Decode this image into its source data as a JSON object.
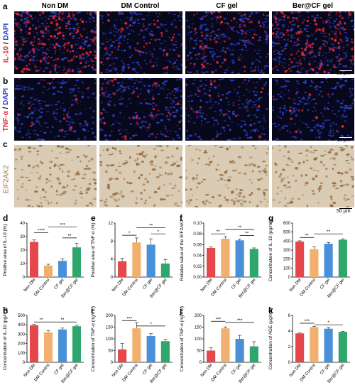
{
  "panel_labels": [
    "a",
    "b",
    "c",
    "d",
    "e",
    "f",
    "g",
    "h",
    "i",
    "j",
    "k"
  ],
  "groups": [
    "Non DM",
    "DM Control",
    "CF gel",
    "Ber@CF gel"
  ],
  "rows": {
    "a": {
      "label_red": "IL-10",
      "label_sep": " / ",
      "label_blue": "DAPI"
    },
    "b": {
      "label_red": "TNF-α",
      "label_sep": " / ",
      "label_blue": "DAPI"
    },
    "c": {
      "label": "EIF2AK2"
    }
  },
  "scale_bar": "50 μm",
  "colors": {
    "non_dm": "#e5474b",
    "dm_control": "#f2b070",
    "cf_gel": "#4a90d9",
    "ber_cf_gel": "#2fa66c",
    "il10_red": "#e8292f",
    "dapi_blue": "#2b3fc9",
    "eif_brown": "#a0703c"
  },
  "chart_data": [
    {
      "panel": "d",
      "type": "bar",
      "categories": [
        "Non DM",
        "DM Control",
        "CF gel",
        "Ber@CF gel"
      ],
      "values": [
        26,
        8.5,
        12,
        22
      ],
      "errors": [
        1.5,
        1,
        1.5,
        3
      ],
      "ylabel": "Positive area of IL-10 (%)",
      "ylim": [
        0,
        40
      ],
      "yticks": [
        0,
        10,
        20,
        30,
        40
      ],
      "sig": [
        {
          "from": 0,
          "to": 1,
          "label": "****",
          "level": 33
        },
        {
          "from": 1,
          "to": 3,
          "label": "***",
          "level": 37
        },
        {
          "from": 2,
          "to": 3,
          "label": "**",
          "level": 29
        }
      ]
    },
    {
      "panel": "e",
      "type": "bar",
      "categories": [
        "Non DM",
        "DM Control",
        "CF gel",
        "Ber@CF gel"
      ],
      "values": [
        3.5,
        7.7,
        7.2,
        3
      ],
      "errors": [
        0.7,
        1,
        1.3,
        0.9
      ],
      "ylabel": "Positive area of TNF-α (%)",
      "ylim": [
        0,
        12
      ],
      "yticks": [
        0,
        4,
        8,
        12
      ],
      "sig": [
        {
          "from": 0,
          "to": 1,
          "label": "*",
          "level": 9.3
        },
        {
          "from": 1,
          "to": 3,
          "label": "**",
          "level": 11
        },
        {
          "from": 2,
          "to": 3,
          "label": "*",
          "level": 9.6
        }
      ]
    },
    {
      "panel": "f",
      "type": "bar",
      "categories": [
        "Non DM",
        "DM Control",
        "CF gel",
        "Ber@CF gel"
      ],
      "values": [
        0.054,
        0.071,
        0.068,
        0.052
      ],
      "errors": [
        0.002,
        0.004,
        0.002,
        0.002
      ],
      "ylabel": "Relative value of the EIF2AK2",
      "ylim": [
        0,
        0.1
      ],
      "yticks": [
        0,
        0.02,
        0.04,
        0.06,
        0.08,
        0.1
      ],
      "tick_decimals": 2,
      "sig": [
        {
          "from": 0,
          "to": 1,
          "label": "**",
          "level": 0.08
        },
        {
          "from": 1,
          "to": 3,
          "label": "**",
          "level": 0.088
        },
        {
          "from": 2,
          "to": 3,
          "label": "**",
          "level": 0.077
        }
      ]
    },
    {
      "panel": "g",
      "type": "bar",
      "categories": [
        "Non DM",
        "DM Control",
        "CF gel",
        "Ber@CF gel"
      ],
      "values": [
        395,
        310,
        370,
        415
      ],
      "errors": [
        8,
        25,
        15,
        10
      ],
      "ylabel": "Concentration of IL-10 (pg/mL)",
      "ylim": [
        0,
        600
      ],
      "yticks": [
        0,
        100,
        200,
        300,
        400,
        500,
        600
      ],
      "sig": [
        {
          "from": 0,
          "to": 1,
          "label": "**",
          "level": 440
        },
        {
          "from": 1,
          "to": 3,
          "label": "**",
          "level": 480
        }
      ]
    },
    {
      "panel": "h",
      "type": "bar",
      "categories": [
        "Non DM",
        "DM Control",
        "CF gel",
        "Ber@CF gel"
      ],
      "values": [
        395,
        320,
        350,
        385
      ],
      "errors": [
        10,
        20,
        15,
        10
      ],
      "ylabel": "Concentration of IL-10 (pg/mL)",
      "ylim": [
        0,
        500
      ],
      "yticks": [
        0,
        100,
        200,
        300,
        400,
        500
      ],
      "sig": [
        {
          "from": 0,
          "to": 1,
          "label": "**",
          "level": 430
        },
        {
          "from": 1,
          "to": 3,
          "label": "**",
          "level": 430
        }
      ]
    },
    {
      "panel": "i",
      "type": "bar",
      "categories": [
        "Non DM",
        "DM Control",
        "CF gel",
        "Ber@CF gel"
      ],
      "values": [
        55,
        145,
        112,
        90
      ],
      "errors": [
        25,
        25,
        10,
        8
      ],
      "ylabel": "Concentration of TNF-α (ng/mL)",
      "ylim": [
        0,
        200
      ],
      "yticks": [
        0,
        50,
        100,
        150,
        200
      ],
      "sig": [
        {
          "from": 0,
          "to": 1,
          "label": "***",
          "level": 178
        },
        {
          "from": 1,
          "to": 3,
          "label": "*",
          "level": 155
        }
      ]
    },
    {
      "panel": "j",
      "type": "bar",
      "categories": [
        "Non DM",
        "DM Control",
        "CF gel",
        "Ber@CF gel"
      ],
      "values": [
        50,
        145,
        100,
        68
      ],
      "errors": [
        12,
        6,
        15,
        20
      ],
      "ylabel": "Concentration of TNF-α (ng/mL)",
      "ylim": [
        0,
        200
      ],
      "yticks": [
        0,
        50,
        100,
        150,
        200
      ],
      "sig": [
        {
          "from": 0,
          "to": 1,
          "label": "***",
          "level": 175
        },
        {
          "from": 1,
          "to": 3,
          "label": "***",
          "level": 170
        }
      ]
    },
    {
      "panel": "k",
      "type": "bar",
      "categories": [
        "Non DM",
        "DM Control",
        "CF gel",
        "Ber@CF gel"
      ],
      "values": [
        3.7,
        4.5,
        4.3,
        3.9
      ],
      "errors": [
        0.05,
        0.1,
        0.15,
        0.05
      ],
      "ylabel": "Concentration of AGE (μg/mL)",
      "ylim": [
        0,
        6
      ],
      "yticks": [
        0,
        2,
        4,
        6
      ],
      "sig": [
        {
          "from": 0,
          "to": 1,
          "label": "***",
          "level": 5.0
        },
        {
          "from": 1,
          "to": 3,
          "label": "*",
          "level": 4.8
        }
      ]
    }
  ]
}
